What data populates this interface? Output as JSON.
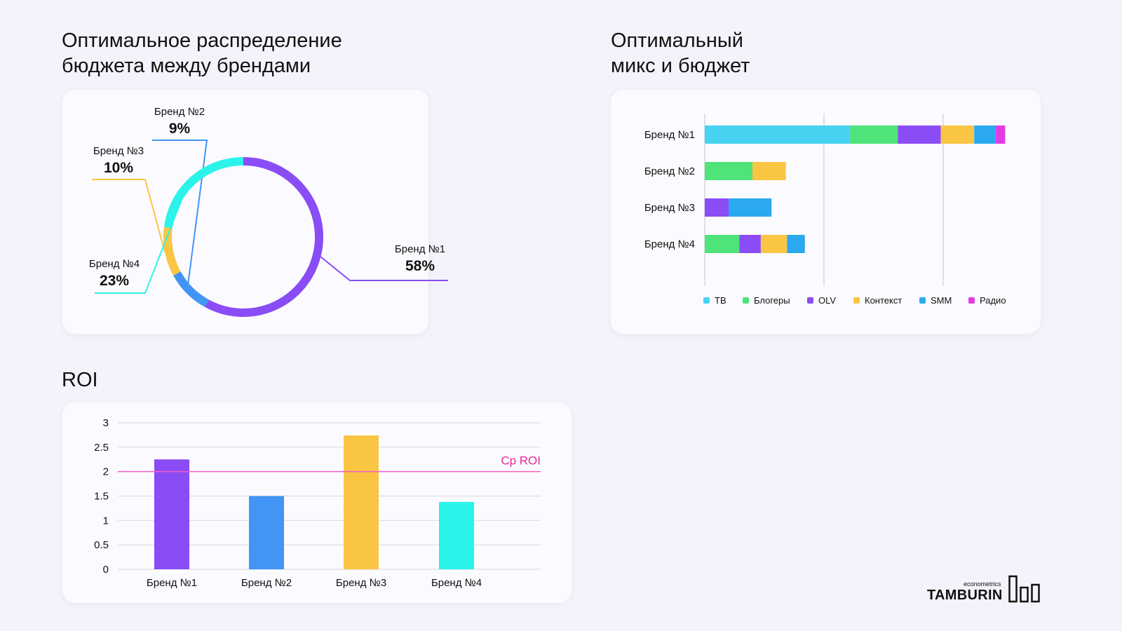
{
  "titles": {
    "donut": "Оптимальное распределение\nбюджета между брендами",
    "mix": "Оптимальный\nмикс и бюджет",
    "roi": "ROI"
  },
  "colors": {
    "purple": "#8a4cf5",
    "blue": "#4295f5",
    "yellow": "#fbc544",
    "cyan": "#2bf3ea",
    "tv": "#47d2f2",
    "bloggers": "#4fe37a",
    "olv": "#8a4cf5",
    "context": "#fbc544",
    "smm": "#2aa9f0",
    "radio": "#e23ce6",
    "avg_line": "#f25dc8"
  },
  "logo": {
    "small": "econometrics",
    "main": "TAMBURIN"
  },
  "chart_data": [
    {
      "type": "pie",
      "title": "Оптимальное распределение бюджета между брендами",
      "labels": [
        "Бренд №1",
        "Бренд №2",
        "Бренд №3",
        "Бренд №4"
      ],
      "values": [
        58,
        9,
        10,
        23
      ],
      "value_labels": [
        "58%",
        "9%",
        "10%",
        "23%"
      ],
      "colors": [
        "#8a4cf5",
        "#4295f5",
        "#fbc544",
        "#2bf3ea"
      ]
    },
    {
      "type": "bar",
      "orientation": "horizontal",
      "stacked": true,
      "title": "Оптимальный микс и бюджет",
      "categories": [
        "Бренд №1",
        "Бренд №2",
        "Бренд №3",
        "Бренд №4"
      ],
      "series": [
        {
          "name": "ТВ",
          "color": "#47d2f2",
          "values": [
            61,
            0,
            0,
            0
          ]
        },
        {
          "name": "Блогеры",
          "color": "#4fe37a",
          "values": [
            20,
            20,
            0,
            14.5
          ]
        },
        {
          "name": "OLV",
          "color": "#8a4cf5",
          "values": [
            18,
            0,
            10,
            9
          ]
        },
        {
          "name": "Контекст",
          "color": "#fbc544",
          "values": [
            14,
            14,
            0,
            11
          ]
        },
        {
          "name": "SMM",
          "color": "#2aa9f0",
          "values": [
            9,
            0,
            18,
            7.5
          ]
        },
        {
          "name": "Радио",
          "color": "#e23ce6",
          "values": [
            4,
            0,
            0,
            0
          ]
        }
      ],
      "xlim": [
        0,
        150
      ],
      "gridlines": [
        0,
        50,
        100
      ],
      "legend": "bottom"
    },
    {
      "type": "bar",
      "title": "ROI",
      "categories": [
        "Бренд №1",
        "Бренд №2",
        "Бренд №3",
        "Бренд №4"
      ],
      "values": [
        2.25,
        1.5,
        2.74,
        1.38
      ],
      "colors": [
        "#8a4cf5",
        "#4295f5",
        "#fbc544",
        "#2bf3ea"
      ],
      "ylim": [
        0,
        3
      ],
      "yticks": [
        "0",
        "0.5",
        "1",
        "1.5",
        "2",
        "2.5",
        "3"
      ],
      "reference_line": {
        "label": "Ср ROI",
        "value": 2
      },
      "grid": true
    }
  ]
}
